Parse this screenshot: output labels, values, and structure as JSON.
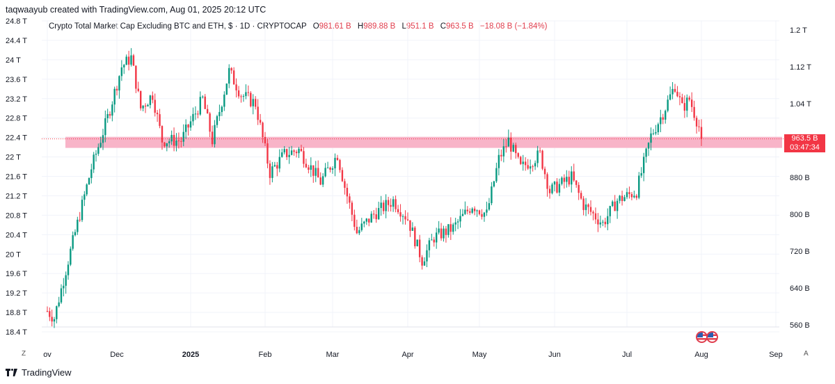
{
  "header": {
    "creator_text": "taqwaayub created with TradingView.com, Aug 01, 2025 20:12 UTC",
    "symbol_title": "Crypto Total Market Cap Excluding BTC and ETH, $ · 1D · CRYPTOCAP",
    "open_label": "O",
    "open_value": "981.61 B",
    "high_label": "H",
    "high_value": "989.88 B",
    "low_label": "L",
    "low_value": "951.1 B",
    "close_label": "C",
    "close_value": "963.5 B",
    "change_value": "−18.08 B (−1.84%)"
  },
  "price_tag": {
    "price": "963.5 B",
    "countdown": "03:47:34"
  },
  "footer": {
    "brand": "TradingView",
    "left_button": "Z",
    "right_button": "A"
  },
  "colors": {
    "up": "#089981",
    "down": "#f23645",
    "zone": "#f8b4c8",
    "grid": "#f0f3fa"
  },
  "icons": [
    "us-flag-icon",
    "us-flag-icon"
  ],
  "chart_data": {
    "type": "candlestick",
    "left_axis": {
      "labels": [
        "24.8 T",
        "24.4 T",
        "24 T",
        "23.6 T",
        "23.2 T",
        "22.8 T",
        "22.4 T",
        "22 T",
        "21.6 T",
        "21.2 T",
        "20.8 T",
        "20.4 T",
        "20 T",
        "19.6 T",
        "19.2 T",
        "18.8 T",
        "18.4 T"
      ],
      "range": [
        18.4,
        24.8
      ],
      "unit": "T"
    },
    "right_axis": {
      "labels": [
        "1.2 T",
        "1.12 T",
        "1.04 T",
        "963.5 B",
        "880 B",
        "800 B",
        "720 B",
        "640 B",
        "560 B"
      ],
      "ticks": [
        1200,
        1120,
        1040,
        880,
        800,
        720,
        640,
        560
      ],
      "unit": "B",
      "range": [
        560,
        1200
      ]
    },
    "x_axis": {
      "labels": [
        "ov",
        "Dec",
        "2025",
        "Feb",
        "Mar",
        "Apr",
        "May",
        "Jun",
        "Jul",
        "Aug",
        "Sep"
      ],
      "dates": [
        "2024-11-01",
        "2024-12-01",
        "2025-01-01",
        "2025-02-01",
        "2025-03-01",
        "2025-04-01",
        "2025-05-01",
        "2025-06-01",
        "2025-07-01",
        "2025-08-01",
        "2025-09-01"
      ]
    },
    "last_price": 963.5,
    "support_zone": {
      "low": 944,
      "high": 968
    },
    "series": [
      {
        "name": "",
        "anchors": [
          {
            "date": "2024-11-01",
            "value": 590
          },
          {
            "date": "2024-11-04",
            "value": 575
          },
          {
            "date": "2024-11-10",
            "value": 700
          },
          {
            "date": "2024-11-14",
            "value": 780
          },
          {
            "date": "2024-11-20",
            "value": 900
          },
          {
            "date": "2024-11-27",
            "value": 1010
          },
          {
            "date": "2024-12-03",
            "value": 1120
          },
          {
            "date": "2024-12-07",
            "value": 1140
          },
          {
            "date": "2024-12-11",
            "value": 1030
          },
          {
            "date": "2024-12-16",
            "value": 1060
          },
          {
            "date": "2024-12-20",
            "value": 960
          },
          {
            "date": "2024-12-28",
            "value": 960
          },
          {
            "date": "2025-01-06",
            "value": 1050
          },
          {
            "date": "2025-01-10",
            "value": 960
          },
          {
            "date": "2025-01-17",
            "value": 1110
          },
          {
            "date": "2025-01-22",
            "value": 1060
          },
          {
            "date": "2025-01-28",
            "value": 1040
          },
          {
            "date": "2025-02-03",
            "value": 890
          },
          {
            "date": "2025-02-09",
            "value": 930
          },
          {
            "date": "2025-02-15",
            "value": 940
          },
          {
            "date": "2025-02-24",
            "value": 870
          },
          {
            "date": "2025-03-03",
            "value": 930
          },
          {
            "date": "2025-03-06",
            "value": 860
          },
          {
            "date": "2025-03-11",
            "value": 760
          },
          {
            "date": "2025-03-18",
            "value": 800
          },
          {
            "date": "2025-03-26",
            "value": 830
          },
          {
            "date": "2025-04-01",
            "value": 790
          },
          {
            "date": "2025-04-07",
            "value": 700
          },
          {
            "date": "2025-04-12",
            "value": 750
          },
          {
            "date": "2025-04-20",
            "value": 770
          },
          {
            "date": "2025-04-28",
            "value": 820
          },
          {
            "date": "2025-05-04",
            "value": 800
          },
          {
            "date": "2025-05-09",
            "value": 920
          },
          {
            "date": "2025-05-13",
            "value": 960
          },
          {
            "date": "2025-05-18",
            "value": 900
          },
          {
            "date": "2025-05-26",
            "value": 930
          },
          {
            "date": "2025-05-30",
            "value": 850
          },
          {
            "date": "2025-06-08",
            "value": 880
          },
          {
            "date": "2025-06-13",
            "value": 820
          },
          {
            "date": "2025-06-21",
            "value": 780
          },
          {
            "date": "2025-06-27",
            "value": 830
          },
          {
            "date": "2025-07-05",
            "value": 850
          },
          {
            "date": "2025-07-11",
            "value": 970
          },
          {
            "date": "2025-07-16",
            "value": 1020
          },
          {
            "date": "2025-07-21",
            "value": 1080
          },
          {
            "date": "2025-07-24",
            "value": 1030
          },
          {
            "date": "2025-07-27",
            "value": 1050
          },
          {
            "date": "2025-07-31",
            "value": 990
          },
          {
            "date": "2025-08-01",
            "value": 963.5
          }
        ]
      }
    ]
  }
}
